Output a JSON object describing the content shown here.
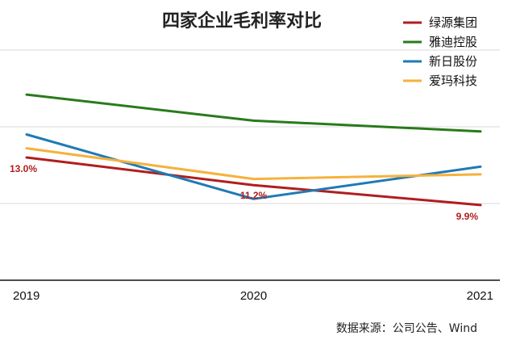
{
  "chart_data": {
    "type": "line",
    "title": "四家企业毛利率对比",
    "xlabel": "",
    "ylabel": "",
    "categories": [
      "2019",
      "2020",
      "2021"
    ],
    "ylim": [
      5,
      20
    ],
    "grid": true,
    "legend_position": "top-right",
    "series": [
      {
        "name": "绿源集团",
        "color": "#b01e1e",
        "values": [
          13.0,
          11.2,
          9.9
        ]
      },
      {
        "name": "雅迪控股",
        "color": "#2a7a1c",
        "values": [
          17.1,
          15.4,
          14.7
        ]
      },
      {
        "name": "新日股份",
        "color": "#1f7ab5",
        "values": [
          14.5,
          10.3,
          12.4
        ]
      },
      {
        "name": "爱玛科技",
        "color": "#f6b13c",
        "values": [
          13.6,
          11.6,
          11.9
        ]
      }
    ],
    "data_labels": [
      {
        "series": 0,
        "index": 0,
        "text": "13.0%"
      },
      {
        "series": 0,
        "index": 1,
        "text": "11.2%"
      },
      {
        "series": 0,
        "index": 2,
        "text": "9.9%"
      }
    ]
  },
  "source": "数据来源：公司公告、Wind"
}
